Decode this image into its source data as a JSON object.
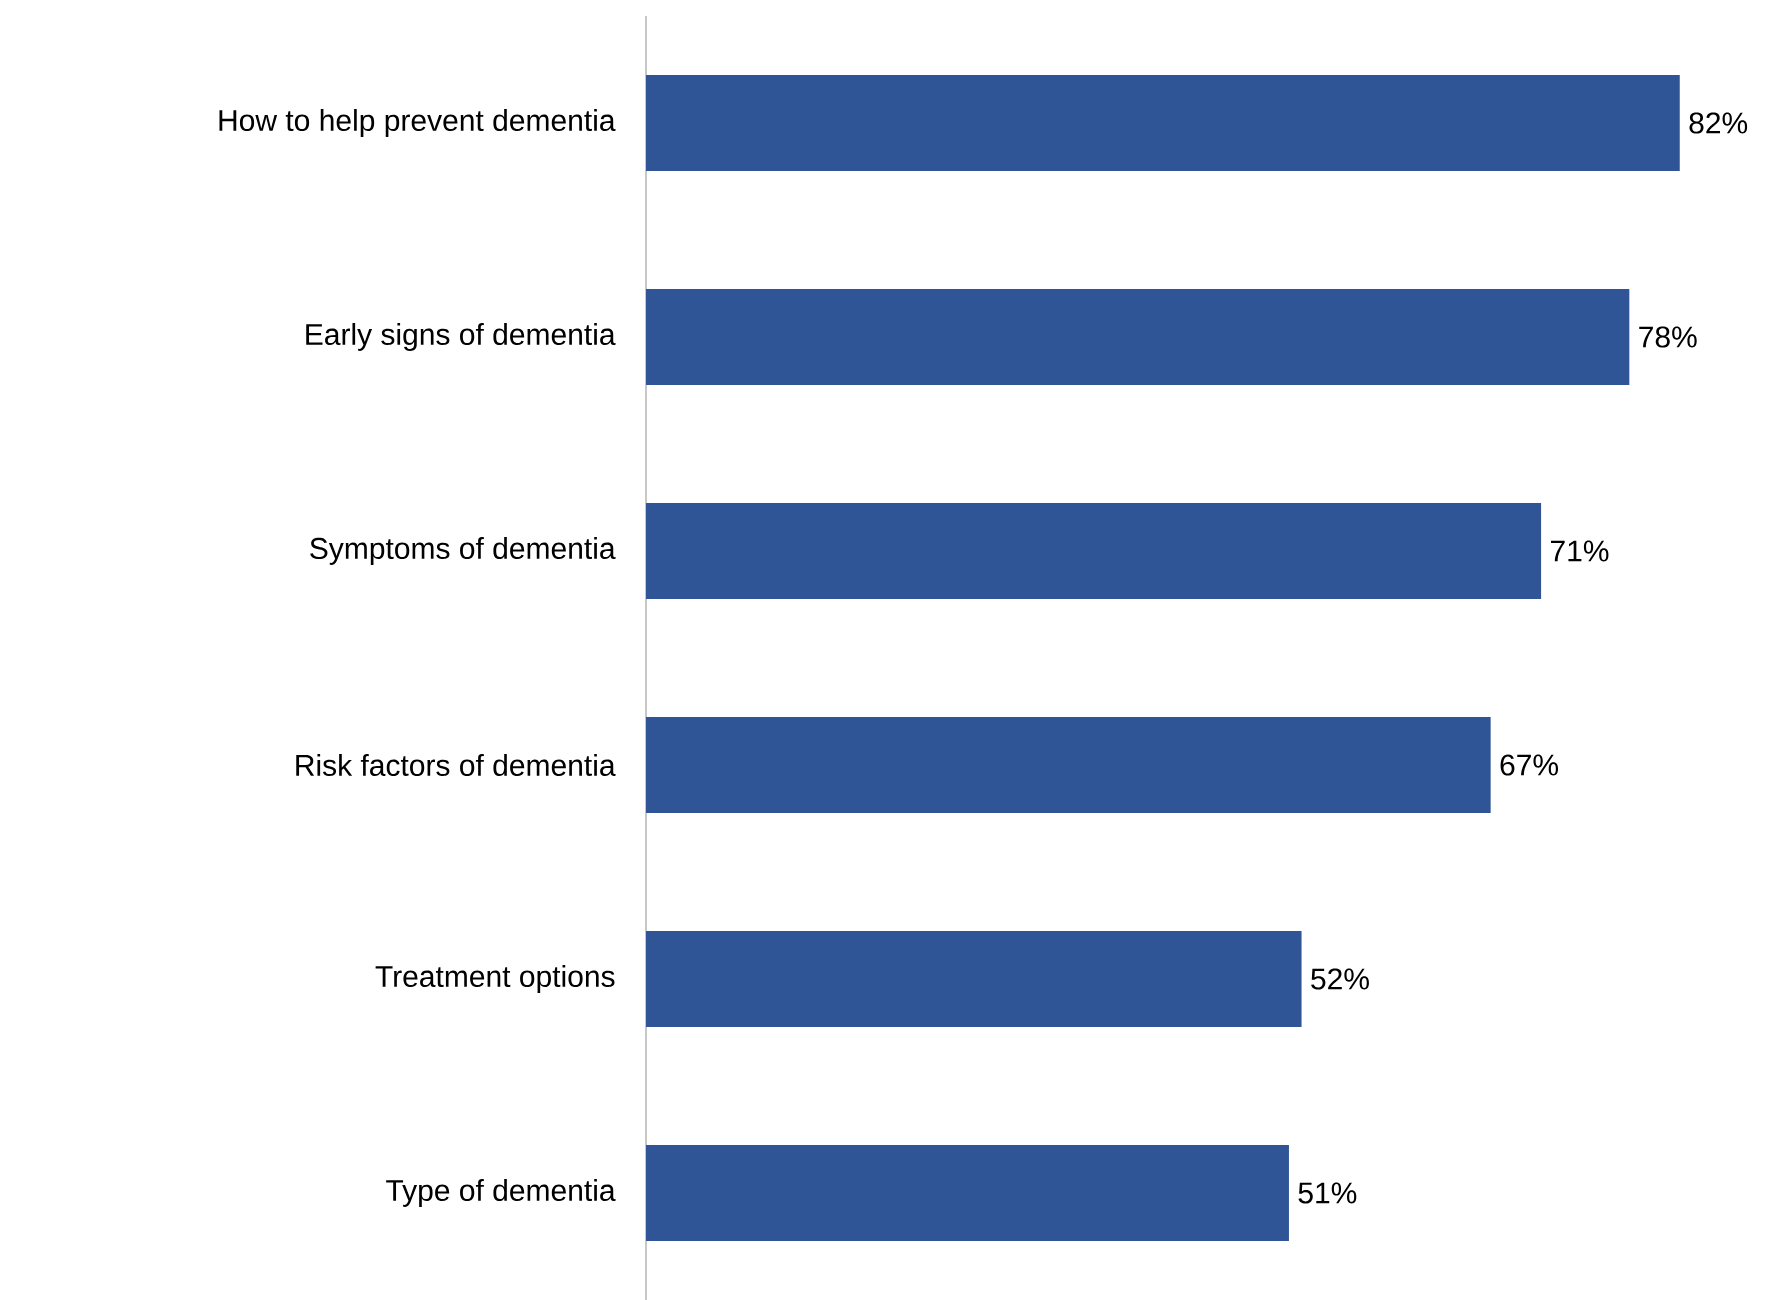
{
  "chart_data": {
    "type": "bar",
    "orientation": "horizontal",
    "categories": [
      "How to help prevent dementia",
      "Early signs of dementia",
      "Symptoms of dementia",
      "Risk factors of dementia",
      "Treatment options",
      "Type of dementia"
    ],
    "values": [
      82,
      78,
      71,
      67,
      52,
      51
    ],
    "value_labels": [
      "82%",
      "78%",
      "71%",
      "67%",
      "52%",
      "51%"
    ],
    "color": "#2f5597",
    "tick_labels": "y"
  }
}
